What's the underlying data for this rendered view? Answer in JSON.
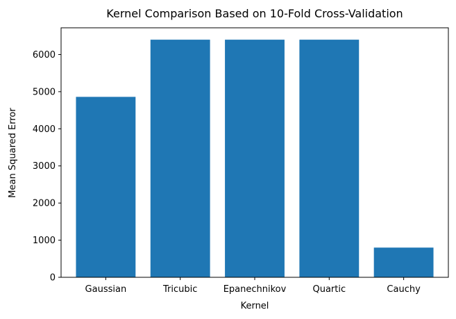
{
  "chart_data": {
    "type": "bar",
    "title": "Kernel Comparison Based on 10-Fold Cross-Validation",
    "xlabel": "Kernel",
    "ylabel": "Mean Squared Error",
    "categories": [
      "Gaussian",
      "Tricubic",
      "Epanechnikov",
      "Quartic",
      "Cauchy"
    ],
    "values": [
      4860,
      6400,
      6400,
      6400,
      800
    ],
    "ylim": [
      0,
      6720
    ],
    "yticks": [
      0,
      1000,
      2000,
      3000,
      4000,
      5000,
      6000
    ],
    "grid": false,
    "bar_color": "#1f77b4"
  }
}
